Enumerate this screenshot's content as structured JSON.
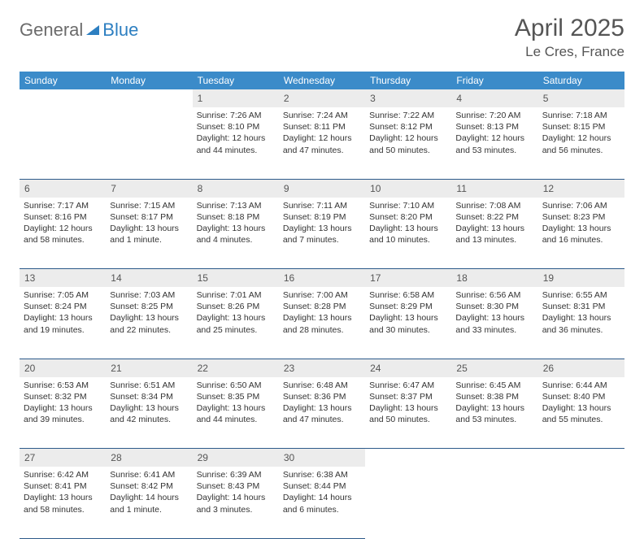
{
  "brand": {
    "part1": "General",
    "part2": "Blue"
  },
  "title": "April 2025",
  "location": "Le Cres, France",
  "header_row_bgcolor": "#3b8bc9",
  "daynum_bgcolor": "#ececec",
  "cell_border_color": "#2d5a8a",
  "days": [
    "Sunday",
    "Monday",
    "Tuesday",
    "Wednesday",
    "Thursday",
    "Friday",
    "Saturday"
  ],
  "weeks": [
    {
      "nums": [
        "",
        "",
        "1",
        "2",
        "3",
        "4",
        "5"
      ],
      "cells": [
        null,
        null,
        {
          "sunrise": "Sunrise: 7:26 AM",
          "sunset": "Sunset: 8:10 PM",
          "daylight": "Daylight: 12 hours and 44 minutes."
        },
        {
          "sunrise": "Sunrise: 7:24 AM",
          "sunset": "Sunset: 8:11 PM",
          "daylight": "Daylight: 12 hours and 47 minutes."
        },
        {
          "sunrise": "Sunrise: 7:22 AM",
          "sunset": "Sunset: 8:12 PM",
          "daylight": "Daylight: 12 hours and 50 minutes."
        },
        {
          "sunrise": "Sunrise: 7:20 AM",
          "sunset": "Sunset: 8:13 PM",
          "daylight": "Daylight: 12 hours and 53 minutes."
        },
        {
          "sunrise": "Sunrise: 7:18 AM",
          "sunset": "Sunset: 8:15 PM",
          "daylight": "Daylight: 12 hours and 56 minutes."
        }
      ]
    },
    {
      "nums": [
        "6",
        "7",
        "8",
        "9",
        "10",
        "11",
        "12"
      ],
      "cells": [
        {
          "sunrise": "Sunrise: 7:17 AM",
          "sunset": "Sunset: 8:16 PM",
          "daylight": "Daylight: 12 hours and 58 minutes."
        },
        {
          "sunrise": "Sunrise: 7:15 AM",
          "sunset": "Sunset: 8:17 PM",
          "daylight": "Daylight: 13 hours and 1 minute."
        },
        {
          "sunrise": "Sunrise: 7:13 AM",
          "sunset": "Sunset: 8:18 PM",
          "daylight": "Daylight: 13 hours and 4 minutes."
        },
        {
          "sunrise": "Sunrise: 7:11 AM",
          "sunset": "Sunset: 8:19 PM",
          "daylight": "Daylight: 13 hours and 7 minutes."
        },
        {
          "sunrise": "Sunrise: 7:10 AM",
          "sunset": "Sunset: 8:20 PM",
          "daylight": "Daylight: 13 hours and 10 minutes."
        },
        {
          "sunrise": "Sunrise: 7:08 AM",
          "sunset": "Sunset: 8:22 PM",
          "daylight": "Daylight: 13 hours and 13 minutes."
        },
        {
          "sunrise": "Sunrise: 7:06 AM",
          "sunset": "Sunset: 8:23 PM",
          "daylight": "Daylight: 13 hours and 16 minutes."
        }
      ]
    },
    {
      "nums": [
        "13",
        "14",
        "15",
        "16",
        "17",
        "18",
        "19"
      ],
      "cells": [
        {
          "sunrise": "Sunrise: 7:05 AM",
          "sunset": "Sunset: 8:24 PM",
          "daylight": "Daylight: 13 hours and 19 minutes."
        },
        {
          "sunrise": "Sunrise: 7:03 AM",
          "sunset": "Sunset: 8:25 PM",
          "daylight": "Daylight: 13 hours and 22 minutes."
        },
        {
          "sunrise": "Sunrise: 7:01 AM",
          "sunset": "Sunset: 8:26 PM",
          "daylight": "Daylight: 13 hours and 25 minutes."
        },
        {
          "sunrise": "Sunrise: 7:00 AM",
          "sunset": "Sunset: 8:28 PM",
          "daylight": "Daylight: 13 hours and 28 minutes."
        },
        {
          "sunrise": "Sunrise: 6:58 AM",
          "sunset": "Sunset: 8:29 PM",
          "daylight": "Daylight: 13 hours and 30 minutes."
        },
        {
          "sunrise": "Sunrise: 6:56 AM",
          "sunset": "Sunset: 8:30 PM",
          "daylight": "Daylight: 13 hours and 33 minutes."
        },
        {
          "sunrise": "Sunrise: 6:55 AM",
          "sunset": "Sunset: 8:31 PM",
          "daylight": "Daylight: 13 hours and 36 minutes."
        }
      ]
    },
    {
      "nums": [
        "20",
        "21",
        "22",
        "23",
        "24",
        "25",
        "26"
      ],
      "cells": [
        {
          "sunrise": "Sunrise: 6:53 AM",
          "sunset": "Sunset: 8:32 PM",
          "daylight": "Daylight: 13 hours and 39 minutes."
        },
        {
          "sunrise": "Sunrise: 6:51 AM",
          "sunset": "Sunset: 8:34 PM",
          "daylight": "Daylight: 13 hours and 42 minutes."
        },
        {
          "sunrise": "Sunrise: 6:50 AM",
          "sunset": "Sunset: 8:35 PM",
          "daylight": "Daylight: 13 hours and 44 minutes."
        },
        {
          "sunrise": "Sunrise: 6:48 AM",
          "sunset": "Sunset: 8:36 PM",
          "daylight": "Daylight: 13 hours and 47 minutes."
        },
        {
          "sunrise": "Sunrise: 6:47 AM",
          "sunset": "Sunset: 8:37 PM",
          "daylight": "Daylight: 13 hours and 50 minutes."
        },
        {
          "sunrise": "Sunrise: 6:45 AM",
          "sunset": "Sunset: 8:38 PM",
          "daylight": "Daylight: 13 hours and 53 minutes."
        },
        {
          "sunrise": "Sunrise: 6:44 AM",
          "sunset": "Sunset: 8:40 PM",
          "daylight": "Daylight: 13 hours and 55 minutes."
        }
      ]
    },
    {
      "nums": [
        "27",
        "28",
        "29",
        "30",
        "",
        "",
        ""
      ],
      "cells": [
        {
          "sunrise": "Sunrise: 6:42 AM",
          "sunset": "Sunset: 8:41 PM",
          "daylight": "Daylight: 13 hours and 58 minutes."
        },
        {
          "sunrise": "Sunrise: 6:41 AM",
          "sunset": "Sunset: 8:42 PM",
          "daylight": "Daylight: 14 hours and 1 minute."
        },
        {
          "sunrise": "Sunrise: 6:39 AM",
          "sunset": "Sunset: 8:43 PM",
          "daylight": "Daylight: 14 hours and 3 minutes."
        },
        {
          "sunrise": "Sunrise: 6:38 AM",
          "sunset": "Sunset: 8:44 PM",
          "daylight": "Daylight: 14 hours and 6 minutes."
        },
        null,
        null,
        null
      ]
    }
  ]
}
